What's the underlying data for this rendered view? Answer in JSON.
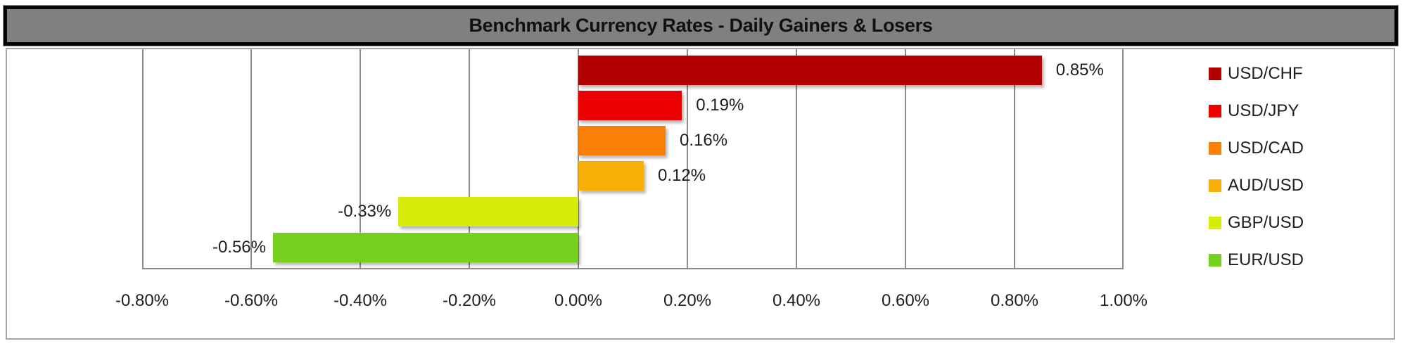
{
  "title": "Benchmark Currency Rates - Daily Gainers & Losers",
  "chart_data": {
    "type": "bar",
    "orientation": "horizontal",
    "title": "Benchmark Currency Rates - Daily Gainers & Losers",
    "xlabel": "",
    "ylabel": "",
    "xlim": [
      -0.8,
      1.0
    ],
    "grid": true,
    "legend_position": "right",
    "categories": [
      "USD/CHF",
      "USD/JPY",
      "USD/CAD",
      "AUD/USD",
      "GBP/USD",
      "EUR/USD"
    ],
    "values": [
      0.85,
      0.19,
      0.16,
      0.12,
      -0.33,
      -0.56
    ],
    "value_labels": [
      "0.85%",
      "0.19%",
      "0.16%",
      "0.12%",
      "-0.33%",
      "-0.56%"
    ],
    "colors": [
      "#b00000",
      "#ee0000",
      "#f97f07",
      "#f8b006",
      "#d8ec0a",
      "#76d11e"
    ],
    "x_ticks": [
      "-0.80%",
      "-0.60%",
      "-0.40%",
      "-0.20%",
      "0.00%",
      "0.20%",
      "0.40%",
      "0.60%",
      "0.80%",
      "1.00%"
    ],
    "x_tick_values": [
      -0.8,
      -0.6,
      -0.4,
      -0.2,
      0.0,
      0.2,
      0.4,
      0.6,
      0.8,
      1.0
    ]
  },
  "legend": [
    {
      "label": "USD/CHF",
      "color": "#b00000"
    },
    {
      "label": "USD/JPY",
      "color": "#ee0000"
    },
    {
      "label": "USD/CAD",
      "color": "#f97f07"
    },
    {
      "label": "AUD/USD",
      "color": "#f8b006"
    },
    {
      "label": "GBP/USD",
      "color": "#d8ec0a"
    },
    {
      "label": "EUR/USD",
      "color": "#76d11e"
    }
  ]
}
